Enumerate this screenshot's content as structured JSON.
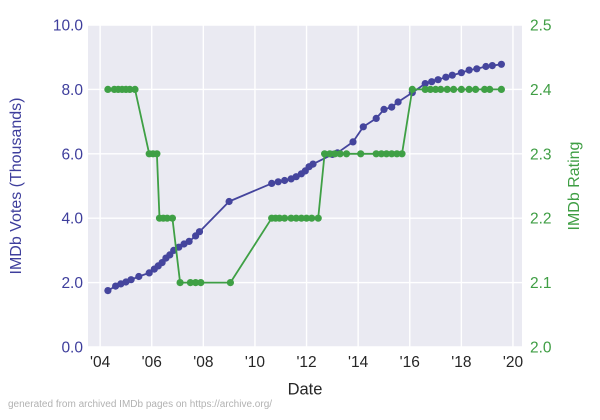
{
  "figure": {
    "caption": "generated from archived IMDb pages on https://archive.org/"
  },
  "colors": {
    "plot_background": "#eaeaf2",
    "gridline": "#ffffff",
    "votes_series": "#45459d",
    "votes_axis_text": "#3e3e9c",
    "rating_series": "#3fa045",
    "rating_axis_text": "#3f9e44",
    "x_axis_text": "#262626",
    "caption_text": "#b2b2b2"
  },
  "chart_data": {
    "type": "line",
    "title": "",
    "xlabel": "Date",
    "ylabel_left": "IMDb Votes (Thousands)",
    "ylabel_right": "IMDb Rating",
    "grid": true,
    "legend": "none",
    "xlim": [
      2003.53,
      2020.35
    ],
    "ylim_left": [
      0,
      10
    ],
    "ylim_right": [
      2.0,
      2.5
    ],
    "x_tick_years": [
      2004,
      2006,
      2008,
      2010,
      2012,
      2014,
      2016,
      2018,
      2020
    ],
    "x_ticks": [
      "'04",
      "'06",
      "'08",
      "'10",
      "'12",
      "'14",
      "'16",
      "'18",
      "'20"
    ],
    "y_left_tick_values": [
      10.0,
      8.0,
      6.0,
      4.0,
      2.0,
      0.0
    ],
    "y_left_ticks": [
      "10.0",
      "8.0",
      "6.0",
      "4.0",
      "2.0",
      "0.0"
    ],
    "y_right_tick_values": [
      2.5,
      2.4,
      2.3,
      2.2,
      2.1,
      2.0
    ],
    "y_right_ticks": [
      "2.5",
      "2.4",
      "2.3",
      "2.2",
      "2.1",
      "2.0"
    ],
    "series": [
      {
        "name": "IMDb Votes (Thousands)",
        "axis": "left",
        "color": "#45459d",
        "x": [
          2004.3,
          2004.6,
          2004.8,
          2005.0,
          2005.2,
          2005.5,
          2005.9,
          2006.1,
          2006.25,
          2006.4,
          2006.55,
          2006.7,
          2006.85,
          2007.05,
          2007.25,
          2007.45,
          2007.7,
          2007.85,
          2009.0,
          2010.65,
          2010.9,
          2011.15,
          2011.4,
          2011.6,
          2011.8,
          2011.95,
          2012.1,
          2012.25,
          2013.0,
          2013.2,
          2013.8,
          2014.2,
          2014.7,
          2015.0,
          2015.3,
          2015.55,
          2016.1,
          2016.6,
          2016.85,
          2017.1,
          2017.4,
          2017.65,
          2018.0,
          2018.3,
          2018.6,
          2018.95,
          2019.2,
          2019.55
        ],
        "y": [
          1.75,
          1.89,
          1.96,
          2.02,
          2.09,
          2.19,
          2.3,
          2.42,
          2.52,
          2.62,
          2.76,
          2.86,
          3.0,
          3.1,
          3.2,
          3.28,
          3.45,
          3.58,
          4.52,
          5.08,
          5.13,
          5.17,
          5.22,
          5.29,
          5.38,
          5.47,
          5.6,
          5.68,
          5.98,
          6.03,
          6.37,
          6.84,
          7.1,
          7.38,
          7.45,
          7.61,
          7.9,
          8.18,
          8.24,
          8.3,
          8.38,
          8.44,
          8.52,
          8.6,
          8.64,
          8.71,
          8.74,
          8.78
        ]
      },
      {
        "name": "IMDb Rating",
        "axis": "right",
        "color": "#3fa045",
        "x": [
          2004.3,
          2004.55,
          2004.7,
          2004.85,
          2005.0,
          2005.15,
          2005.35,
          2005.9,
          2006.05,
          2006.2,
          2006.3,
          2006.45,
          2006.6,
          2006.8,
          2007.1,
          2007.5,
          2007.7,
          2007.9,
          2009.05,
          2010.65,
          2010.8,
          2010.95,
          2011.15,
          2011.4,
          2011.6,
          2011.8,
          2012.0,
          2012.2,
          2012.45,
          2012.7,
          2012.9,
          2013.1,
          2013.3,
          2013.55,
          2014.1,
          2014.7,
          2014.9,
          2015.1,
          2015.3,
          2015.5,
          2015.7,
          2016.1,
          2016.6,
          2016.8,
          2017.0,
          2017.2,
          2017.45,
          2017.7,
          2018.0,
          2018.3,
          2018.55,
          2018.9,
          2019.1,
          2019.55
        ],
        "y": [
          2.4,
          2.4,
          2.4,
          2.4,
          2.4,
          2.4,
          2.4,
          2.3,
          2.3,
          2.3,
          2.2,
          2.2,
          2.2,
          2.2,
          2.1,
          2.1,
          2.1,
          2.1,
          2.1,
          2.2,
          2.2,
          2.2,
          2.2,
          2.2,
          2.2,
          2.2,
          2.2,
          2.2,
          2.2,
          2.3,
          2.3,
          2.3,
          2.3,
          2.3,
          2.3,
          2.3,
          2.3,
          2.3,
          2.3,
          2.3,
          2.3,
          2.4,
          2.4,
          2.4,
          2.4,
          2.4,
          2.4,
          2.4,
          2.4,
          2.4,
          2.4,
          2.4,
          2.4,
          2.4
        ]
      }
    ]
  }
}
